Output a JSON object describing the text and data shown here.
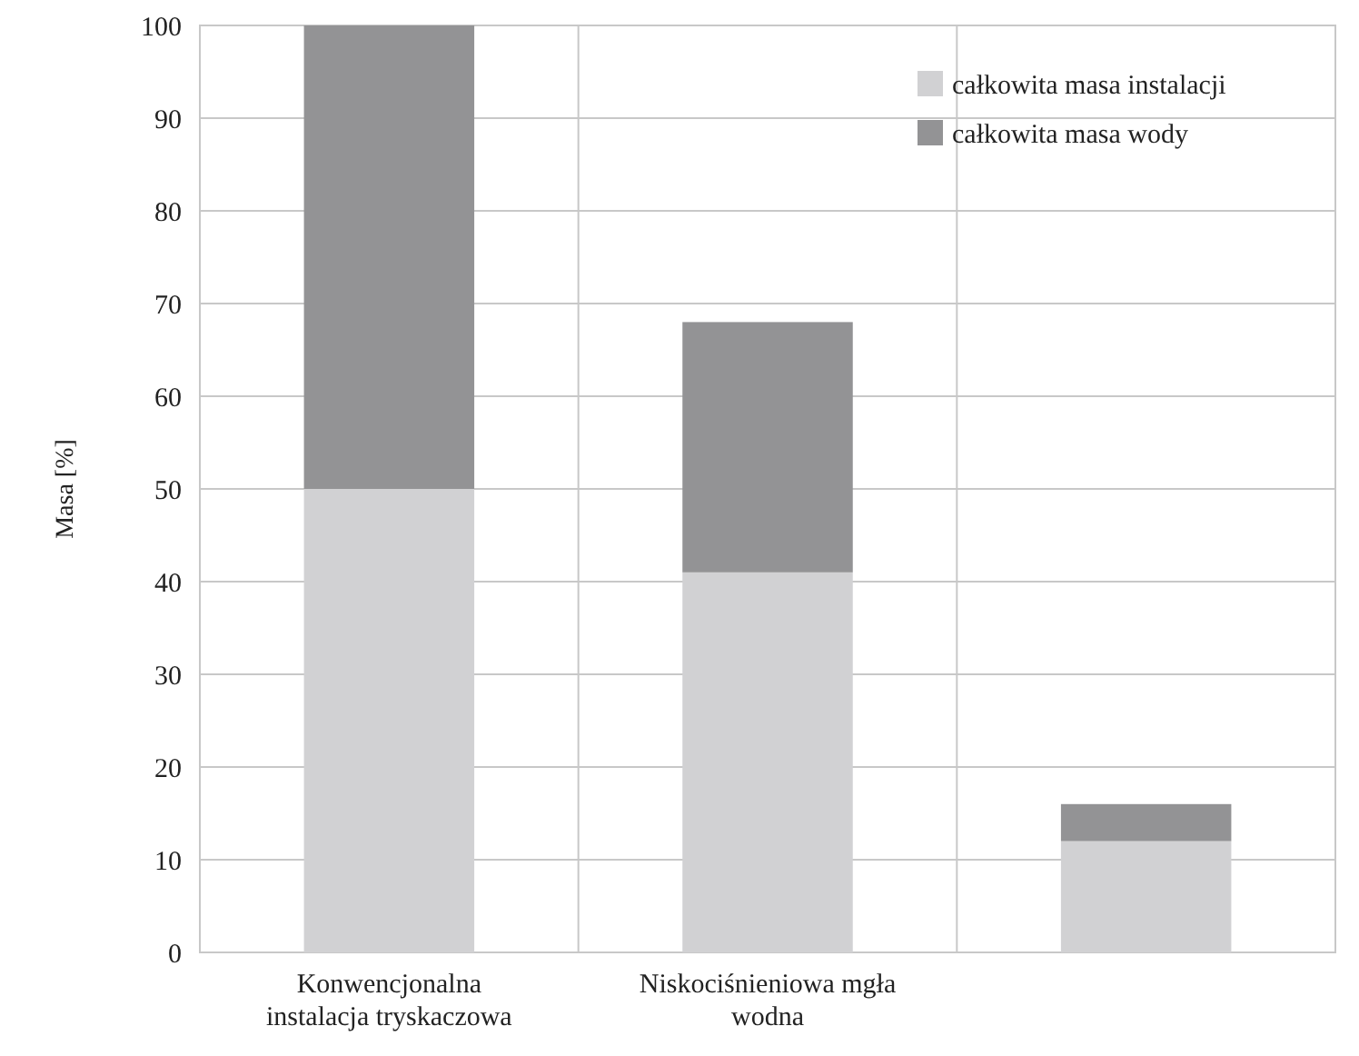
{
  "chart_data": {
    "type": "bar",
    "stacked": true,
    "ylabel": "Masa [%]",
    "categories": [
      "Konwencjonalna instalacja tryskaczowa",
      "Niskociśnieniowa mgła wodna",
      null
    ],
    "series": [
      {
        "name": "całkowita masa instalacji",
        "color": "#d1d1d3",
        "values": [
          50,
          41,
          12
        ]
      },
      {
        "name": "całkowita masa wody",
        "color": "#939395",
        "values": [
          50,
          27,
          4
        ]
      }
    ],
    "ylim": [
      0,
      100
    ],
    "yticks": [
      0,
      10,
      20,
      30,
      40,
      50,
      60,
      70,
      80,
      90,
      100
    ],
    "grid": true,
    "legend": "top right"
  }
}
